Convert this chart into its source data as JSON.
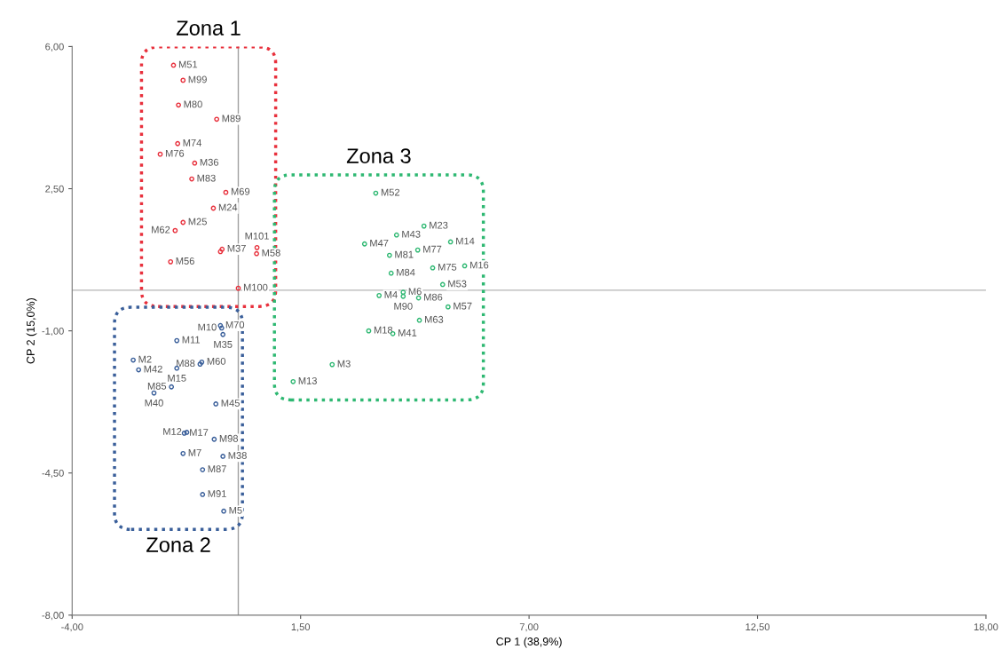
{
  "chart_data": {
    "type": "scatter",
    "xlabel": "CP 1 (38,9%)",
    "ylabel": "CP 2 (15,0%)",
    "xlim": [
      -4,
      18
    ],
    "ylim": [
      -8,
      6
    ],
    "xticks": [
      {
        "value": -4,
        "label": "-4,00"
      },
      {
        "value": 1.5,
        "label": "1,50"
      },
      {
        "value": 7,
        "label": "7,00"
      },
      {
        "value": 12.5,
        "label": "12,50"
      },
      {
        "value": 18,
        "label": "18,00"
      }
    ],
    "yticks": [
      {
        "value": -8,
        "label": "-8,00"
      },
      {
        "value": -4.5,
        "label": "-4,50"
      },
      {
        "value": -1,
        "label": "-1,00"
      },
      {
        "value": 2.5,
        "label": "2,50"
      },
      {
        "value": 6,
        "label": "6,00"
      }
    ],
    "grid": false,
    "legend": false,
    "marker": "circle",
    "ref_lines": [
      {
        "axis": "x",
        "value": 0,
        "color": "#a0a0a0"
      },
      {
        "axis": "y",
        "value": 0,
        "color": "#b4b4b4"
      }
    ],
    "series": [
      {
        "name": "Zona 1",
        "color": "#e8303c",
        "x": [
          -1.56,
          -1.33,
          -1.44,
          -0.52,
          -1.46,
          -1.88,
          -1.05,
          -1.12,
          -0.3,
          -0.6,
          -1.33,
          -1.52,
          -0.39,
          -0.43,
          -1.63,
          0.44,
          0.45,
          0.0
        ],
        "values": [
          5.54,
          5.17,
          4.56,
          4.21,
          3.61,
          3.35,
          3.13,
          2.74,
          2.41,
          2.02,
          1.67,
          1.47,
          1.01,
          0.95,
          0.7,
          0.9,
          1.05,
          0.05
        ],
        "value_labels": [
          "M51",
          "M99",
          "M80",
          "M89",
          "M74",
          "M76",
          "M36",
          "M83",
          "M69",
          "M24",
          "M25",
          "M62",
          "M37",
          null,
          "M56",
          "M58",
          "M101",
          "M100"
        ]
      },
      {
        "name": "Zona 2",
        "color": "#3a5f9a",
        "x": [
          -0.43,
          -0.4,
          -0.37,
          -1.48,
          -2.53,
          -2.4,
          -0.88,
          -0.92,
          -1.48,
          -1.61,
          -2.03,
          -0.54,
          -1.3,
          -1.24,
          -0.58,
          -1.33,
          -0.37,
          -0.86,
          -0.86,
          -0.35
        ],
        "values": [
          -0.87,
          -0.93,
          -1.09,
          -1.24,
          -1.72,
          -1.96,
          -1.77,
          -1.82,
          -1.92,
          -2.38,
          -2.53,
          -2.8,
          -3.52,
          -3.5,
          -3.67,
          -4.02,
          -4.09,
          -4.42,
          -5.03,
          -5.44
        ],
        "value_labels": [
          "M70",
          "M10",
          "M35",
          "M11",
          "M2",
          "M42",
          "M60",
          "M88",
          "M15",
          "M85",
          "M40",
          "M45",
          "M17",
          "M12",
          "M98",
          "M7",
          "M38",
          "M87",
          "M91",
          "M5"
        ]
      },
      {
        "name": "Zona 3",
        "color": "#2eb872",
        "x": [
          3.31,
          3.04,
          3.81,
          4.47,
          5.11,
          3.64,
          4.32,
          3.68,
          4.68,
          5.45,
          4.92,
          3.39,
          3.97,
          3.97,
          4.34,
          5.05,
          4.36,
          3.14,
          3.72,
          2.26,
          1.32
        ],
        "values": [
          2.39,
          1.14,
          1.36,
          1.58,
          1.19,
          0.86,
          0.99,
          0.42,
          0.55,
          0.6,
          0.14,
          -0.13,
          -0.05,
          -0.15,
          -0.19,
          -0.41,
          -0.74,
          -1.0,
          -1.07,
          -1.83,
          -2.25
        ],
        "value_labels": [
          "M52",
          "M47",
          "M43",
          "M23",
          "M14",
          "M81",
          "M77",
          "M84",
          "M75",
          "M16",
          "M53",
          "M4",
          "M6",
          "M90",
          "M86",
          "M57",
          "M63",
          "M18",
          "M41",
          "M3",
          "M13"
        ]
      }
    ]
  }
}
